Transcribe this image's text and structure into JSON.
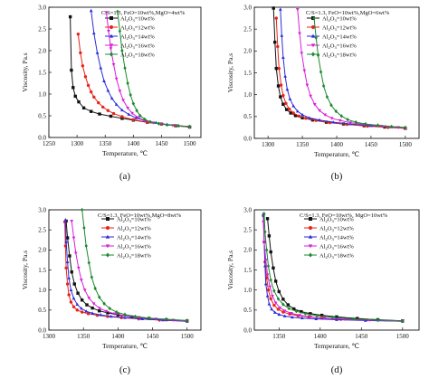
{
  "legend_prefix": "Al",
  "legend_sub": "2",
  "legend_mid": "O",
  "legend_sub2": "3",
  "chart_data": [
    {
      "type": "line",
      "panel_label": "(a)",
      "annotation": "C/S=1.3, FeO=10wt%,MgO=4wt%",
      "xlabel": "Temperature, ℃",
      "ylabel": "Viscosity, Pa.s",
      "xlim": [
        1250,
        1520
      ],
      "ylim": [
        0,
        3.0
      ],
      "xticks": [
        1250,
        1300,
        1350,
        1400,
        1450,
        1500
      ],
      "yticks": [
        0.0,
        0.5,
        1.0,
        1.5,
        2.0,
        2.5,
        3.0
      ],
      "legend_position": "top-right",
      "grid": false,
      "series": [
        {
          "name": "=10wt%",
          "marker": "square",
          "color": "#111111",
          "x": [
            1288,
            1290,
            1293,
            1297,
            1303,
            1312,
            1325,
            1340,
            1360,
            1380,
            1400,
            1425,
            1450,
            1475,
            1500
          ],
          "y": [
            2.78,
            1.55,
            1.15,
            0.95,
            0.82,
            0.68,
            0.6,
            0.54,
            0.49,
            0.44,
            0.4,
            0.35,
            0.31,
            0.27,
            0.24
          ]
        },
        {
          "name": "=12wt%",
          "marker": "circle",
          "color": "#e8231a",
          "x": [
            1302,
            1306,
            1310,
            1315,
            1320,
            1325,
            1330,
            1338,
            1346,
            1355,
            1365,
            1380,
            1400,
            1425,
            1450,
            1475,
            1500
          ],
          "y": [
            2.38,
            1.95,
            1.65,
            1.4,
            1.2,
            1.05,
            0.93,
            0.8,
            0.7,
            0.62,
            0.55,
            0.48,
            0.41,
            0.35,
            0.31,
            0.27,
            0.24
          ]
        },
        {
          "name": "=14wt%",
          "marker": "triangle-up",
          "color": "#2b2bd9",
          "x": [
            1325,
            1330,
            1336,
            1342,
            1348,
            1355,
            1362,
            1370,
            1380,
            1392,
            1405,
            1420,
            1440,
            1460,
            1480,
            1500
          ],
          "y": [
            2.92,
            2.4,
            1.95,
            1.6,
            1.3,
            1.08,
            0.9,
            0.76,
            0.63,
            0.53,
            0.45,
            0.39,
            0.34,
            0.3,
            0.27,
            0.25
          ]
        },
        {
          "name": "=16wt%",
          "marker": "triangle-down",
          "color": "#d81ed8",
          "x": [
            1352,
            1356,
            1360,
            1365,
            1370,
            1376,
            1382,
            1390,
            1398,
            1408,
            1420,
            1435,
            1450,
            1470,
            1500
          ],
          "y": [
            2.88,
            2.45,
            2.05,
            1.68,
            1.35,
            1.07,
            0.86,
            0.68,
            0.56,
            0.46,
            0.39,
            0.34,
            0.31,
            0.28,
            0.25
          ]
        },
        {
          "name": "=18wt%",
          "marker": "diamond",
          "color": "#1a8a2e",
          "x": [
            1372,
            1376,
            1380,
            1385,
            1390,
            1395,
            1400,
            1406,
            1412,
            1420,
            1430,
            1445,
            1460,
            1480,
            1500
          ],
          "y": [
            2.9,
            2.45,
            2.0,
            1.6,
            1.25,
            0.98,
            0.78,
            0.62,
            0.5,
            0.42,
            0.36,
            0.32,
            0.29,
            0.27,
            0.25
          ]
        }
      ]
    },
    {
      "type": "line",
      "panel_label": "(b)",
      "annotation": "C/S=1.3, FeO=10wt%,MgO=6wt%",
      "xlabel": "Temperature, ℃",
      "ylabel": "Viscosity, Pa.s",
      "xlim": [
        1280,
        1520
      ],
      "ylim": [
        0,
        3.0
      ],
      "xticks": [
        1300,
        1350,
        1400,
        1450,
        1500
      ],
      "yticks": [
        0.0,
        0.5,
        1.0,
        1.5,
        2.0,
        2.5,
        3.0
      ],
      "legend_position": "top-right",
      "grid": false,
      "series": [
        {
          "name": "=10wt%",
          "marker": "square",
          "color": "#111111",
          "x": [
            1308,
            1310,
            1312,
            1315,
            1318,
            1322,
            1327,
            1333,
            1340,
            1350,
            1365,
            1385,
            1410,
            1440,
            1470,
            1500
          ],
          "y": [
            2.98,
            2.2,
            1.6,
            1.2,
            0.95,
            0.78,
            0.66,
            0.58,
            0.52,
            0.47,
            0.42,
            0.37,
            0.33,
            0.29,
            0.26,
            0.23
          ]
        },
        {
          "name": "=12wt%",
          "marker": "circle",
          "color": "#e8231a",
          "x": [
            1312,
            1314,
            1316,
            1319,
            1322,
            1326,
            1331,
            1337,
            1345,
            1355,
            1370,
            1390,
            1415,
            1445,
            1475,
            1500
          ],
          "y": [
            2.75,
            2.1,
            1.6,
            1.22,
            0.98,
            0.8,
            0.67,
            0.58,
            0.51,
            0.46,
            0.41,
            0.36,
            0.32,
            0.28,
            0.25,
            0.23
          ]
        },
        {
          "name": "=14wt%",
          "marker": "triangle-up",
          "color": "#2b2bd9",
          "x": [
            1318,
            1320,
            1322,
            1325,
            1328,
            1332,
            1337,
            1343,
            1350,
            1360,
            1375,
            1395,
            1420,
            1450,
            1480,
            1500
          ],
          "y": [
            2.95,
            2.35,
            1.85,
            1.42,
            1.12,
            0.9,
            0.74,
            0.62,
            0.54,
            0.47,
            0.42,
            0.37,
            0.33,
            0.29,
            0.26,
            0.24
          ]
        },
        {
          "name": "=16wt%",
          "marker": "triangle-down",
          "color": "#d81ed8",
          "x": [
            1343,
            1346,
            1349,
            1353,
            1357,
            1362,
            1368,
            1375,
            1383,
            1393,
            1405,
            1420,
            1440,
            1465,
            1490,
            1500
          ],
          "y": [
            2.95,
            2.4,
            1.95,
            1.55,
            1.22,
            0.97,
            0.78,
            0.64,
            0.54,
            0.46,
            0.41,
            0.36,
            0.32,
            0.28,
            0.25,
            0.24
          ]
        },
        {
          "name": "=18wt%",
          "marker": "diamond",
          "color": "#1a8a2e",
          "x": [
            1367,
            1370,
            1373,
            1377,
            1381,
            1386,
            1392,
            1399,
            1407,
            1416,
            1428,
            1442,
            1460,
            1480,
            1500
          ],
          "y": [
            2.75,
            2.3,
            1.9,
            1.52,
            1.2,
            0.95,
            0.76,
            0.62,
            0.51,
            0.43,
            0.37,
            0.33,
            0.3,
            0.27,
            0.25
          ]
        }
      ]
    },
    {
      "type": "line",
      "panel_label": "(c)",
      "annotation": "C/S=1.3, FeO=10wt%,MgO=8wt%",
      "xlabel": "Temperature, ℃",
      "ylabel": "Viscosity, Pa.s",
      "xlim": [
        1300,
        1520
      ],
      "ylim": [
        0,
        3.0
      ],
      "xticks": [
        1300,
        1350,
        1400,
        1450,
        1500
      ],
      "yticks": [
        0.0,
        0.5,
        1.0,
        1.5,
        2.0,
        2.5,
        3.0
      ],
      "legend_position": "top-right",
      "grid": false,
      "series": [
        {
          "name": "=10wt%",
          "marker": "square",
          "color": "#111111",
          "x": [
            1325,
            1327,
            1330,
            1333,
            1337,
            1342,
            1348,
            1355,
            1363,
            1373,
            1385,
            1400,
            1420,
            1445,
            1470,
            1500
          ],
          "y": [
            2.72,
            2.3,
            1.85,
            1.45,
            1.15,
            0.92,
            0.75,
            0.63,
            0.55,
            0.48,
            0.43,
            0.38,
            0.33,
            0.29,
            0.26,
            0.23
          ]
        },
        {
          "name": "=12wt%",
          "marker": "circle",
          "color": "#e8231a",
          "x": [
            1323,
            1324,
            1325,
            1327,
            1329,
            1332,
            1336,
            1341,
            1348,
            1357,
            1370,
            1385,
            1405,
            1430,
            1460,
            1500
          ],
          "y": [
            2.7,
            2.1,
            1.55,
            1.15,
            0.88,
            0.7,
            0.58,
            0.5,
            0.45,
            0.41,
            0.37,
            0.34,
            0.31,
            0.28,
            0.25,
            0.22
          ]
        },
        {
          "name": "=14wt%",
          "marker": "triangle-up",
          "color": "#2b2bd9",
          "x": [
            1324,
            1325,
            1327,
            1329,
            1332,
            1336,
            1341,
            1347,
            1354,
            1363,
            1375,
            1390,
            1410,
            1435,
            1465,
            1500
          ],
          "y": [
            2.75,
            2.2,
            1.7,
            1.3,
            1.0,
            0.79,
            0.64,
            0.54,
            0.47,
            0.42,
            0.38,
            0.34,
            0.31,
            0.28,
            0.25,
            0.22
          ]
        },
        {
          "name": "=16wt%",
          "marker": "triangle-down",
          "color": "#d81ed8",
          "x": [
            1333,
            1336,
            1339,
            1343,
            1347,
            1352,
            1358,
            1365,
            1373,
            1383,
            1395,
            1410,
            1430,
            1455,
            1480,
            1500
          ],
          "y": [
            2.72,
            2.3,
            1.92,
            1.55,
            1.25,
            1.0,
            0.8,
            0.66,
            0.55,
            0.47,
            0.41,
            0.36,
            0.32,
            0.28,
            0.25,
            0.23
          ]
        },
        {
          "name": "=18wt%",
          "marker": "diamond",
          "color": "#1a8a2e",
          "x": [
            1348,
            1351,
            1354,
            1358,
            1362,
            1367,
            1373,
            1380,
            1388,
            1398,
            1410,
            1425,
            1445,
            1470,
            1500
          ],
          "y": [
            3.0,
            2.55,
            2.1,
            1.68,
            1.32,
            1.04,
            0.82,
            0.66,
            0.54,
            0.45,
            0.39,
            0.34,
            0.3,
            0.27,
            0.24
          ]
        }
      ]
    },
    {
      "type": "line",
      "panel_label": "(d)",
      "annotation": "C/S=1.3, FeO=10wt%, MgO=10wt%",
      "xlabel": "Temperature, ℃",
      "ylabel": "Viscosity, Pa.s",
      "xlim": [
        1320,
        1520
      ],
      "ylim": [
        0,
        3.0
      ],
      "xticks": [
        1350,
        1400,
        1450,
        1500
      ],
      "yticks": [
        0.0,
        0.5,
        1.0,
        1.5,
        2.0,
        2.5,
        3.0
      ],
      "legend_position": "top-right",
      "grid": false,
      "series": [
        {
          "name": "=10wt%",
          "marker": "square",
          "color": "#111111",
          "x": [
            1336,
            1338,
            1340,
            1343,
            1346,
            1350,
            1355,
            1361,
            1368,
            1377,
            1388,
            1402,
            1420,
            1445,
            1470,
            1500
          ],
          "y": [
            2.78,
            2.35,
            1.95,
            1.55,
            1.22,
            0.96,
            0.77,
            0.63,
            0.53,
            0.46,
            0.41,
            0.37,
            0.33,
            0.29,
            0.26,
            0.23
          ]
        },
        {
          "name": "=12wt%",
          "marker": "circle",
          "color": "#e8231a",
          "x": [
            1331,
            1332,
            1333,
            1335,
            1337,
            1340,
            1344,
            1349,
            1355,
            1363,
            1373,
            1386,
            1402,
            1425,
            1455,
            1500
          ],
          "y": [
            2.85,
            2.2,
            1.7,
            1.3,
            1.0,
            0.78,
            0.62,
            0.52,
            0.45,
            0.4,
            0.36,
            0.33,
            0.3,
            0.27,
            0.25,
            0.22
          ]
        },
        {
          "name": "=14wt%",
          "marker": "triangle-up",
          "color": "#2b2bd9",
          "x": [
            1331,
            1332,
            1333,
            1334,
            1336,
            1338,
            1341,
            1345,
            1350,
            1357,
            1366,
            1378,
            1395,
            1420,
            1455,
            1500
          ],
          "y": [
            2.9,
            2.2,
            1.6,
            1.15,
            0.85,
            0.65,
            0.52,
            0.44,
            0.39,
            0.35,
            0.32,
            0.3,
            0.28,
            0.26,
            0.24,
            0.22
          ]
        },
        {
          "name": "=16wt%",
          "marker": "triangle-down",
          "color": "#d81ed8",
          "x": [
            1331,
            1332,
            1334,
            1336,
            1339,
            1342,
            1346,
            1351,
            1357,
            1365,
            1375,
            1388,
            1405,
            1430,
            1460,
            1500
          ],
          "y": [
            2.7,
            2.2,
            1.75,
            1.38,
            1.08,
            0.85,
            0.68,
            0.56,
            0.48,
            0.42,
            0.37,
            0.33,
            0.3,
            0.27,
            0.25,
            0.22
          ]
        },
        {
          "name": "=18wt%",
          "marker": "diamond",
          "color": "#1a8a2e",
          "x": [
            1332,
            1333,
            1335,
            1337,
            1340,
            1344,
            1349,
            1355,
            1362,
            1371,
            1382,
            1396,
            1415,
            1440,
            1470,
            1500
          ],
          "y": [
            2.9,
            2.45,
            2.0,
            1.6,
            1.25,
            0.98,
            0.78,
            0.64,
            0.54,
            0.47,
            0.41,
            0.36,
            0.32,
            0.28,
            0.25,
            0.23
          ]
        }
      ]
    }
  ]
}
